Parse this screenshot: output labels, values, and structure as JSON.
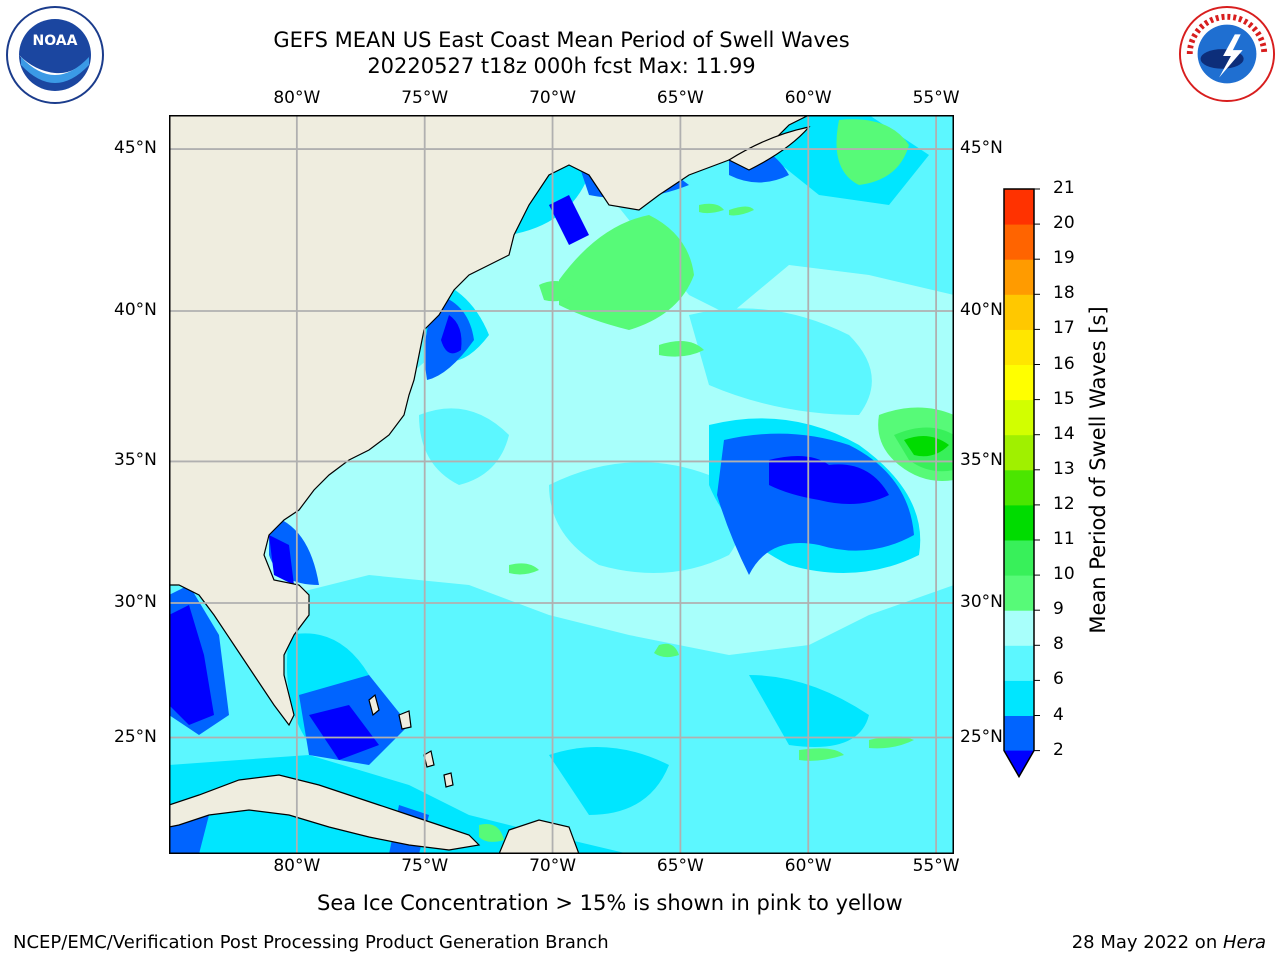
{
  "title_line1": "GEFS MEAN US East Coast Mean Period of Swell Waves",
  "title_line2": "20220527 t18z 000h fcst   Max: 11.99",
  "logos": {
    "left": {
      "name": "noaa-logo",
      "text": "NOAA",
      "ring_text": "NATIONAL OCEANIC AND ATMOSPHERIC ADMINISTRATION · U.S. DEPARTMENT OF COMMERCE"
    },
    "right": {
      "name": "nws-logo",
      "ring_text": "NATIONAL WEATHER SERVICE"
    }
  },
  "map": {
    "lon_ticks_top": [
      "80°W",
      "75°W",
      "70°W",
      "65°W",
      "60°W",
      "55°W"
    ],
    "lon_ticks_bottom": [
      "80°W",
      "75°W",
      "70°W",
      "65°W",
      "60°W",
      "55°W"
    ],
    "lat_ticks_left": [
      "45°N",
      "40°N",
      "35°N",
      "30°N",
      "25°N"
    ],
    "lat_ticks_right": [
      "45°N",
      "40°N",
      "35°N",
      "30°N",
      "25°N"
    ],
    "lon_values": [
      -80,
      -75,
      -70,
      -65,
      -60,
      -55
    ],
    "lat_values": [
      45,
      40,
      35,
      30,
      25
    ],
    "extent": {
      "lon_min": -85,
      "lon_max": -54.3,
      "lat_min": 20.5,
      "lat_max": 46.0
    },
    "grid": true,
    "colors": {
      "land": "#efeddf",
      "ocean_base": "#a8fffb",
      "coast": "#000000",
      "grid": "#b0b0b0"
    }
  },
  "colorbar": {
    "label": "Mean Period of Swell Waves [s]",
    "tick_labels": [
      "2",
      "4",
      "6",
      "8",
      "9",
      "10",
      "11",
      "12",
      "13",
      "14",
      "15",
      "16",
      "17",
      "18",
      "19",
      "20",
      "21"
    ],
    "levels": [
      2,
      4,
      6,
      8,
      9,
      10,
      11,
      12,
      13,
      14,
      15,
      16,
      17,
      18,
      19,
      20,
      21
    ],
    "colors": [
      "#0064ff",
      "#00e6ff",
      "#5cf7ff",
      "#a8fffb",
      "#57fa78",
      "#38f05a",
      "#00dc00",
      "#4be600",
      "#a0f000",
      "#d2ff00",
      "#ffff00",
      "#ffe600",
      "#ffc800",
      "#ff9b00",
      "#ff6400",
      "#ff3200",
      "#ff0000"
    ],
    "under_color": "#0000ff",
    "extend": "min"
  },
  "note": "Sea Ice Concentration > 15% is shown in pink to yellow",
  "footer_left": "NCEP/EMC/Verification Post Processing Product Generation Branch",
  "footer_right_date": "28 May 2022 on ",
  "footer_right_host": "Hera"
}
